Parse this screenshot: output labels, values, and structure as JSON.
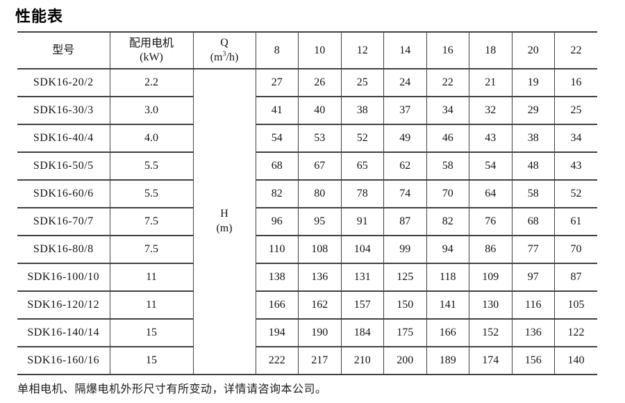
{
  "title": "性能表",
  "table": {
    "headers": {
      "model": "型号",
      "motor_line1": "配用电机",
      "motor_line2": "(kW)",
      "q_label": "Q",
      "q_unit_prefix": "(m",
      "q_unit_sup": "3",
      "q_unit_suffix": "/h)",
      "q_values": [
        "8",
        "10",
        "12",
        "14",
        "16",
        "18",
        "20",
        "22"
      ]
    },
    "h_label": {
      "line1": "H",
      "line2": "(m)"
    },
    "rows": [
      {
        "model": "SDK16-20/2",
        "kw": "2.2",
        "values": [
          "27",
          "26",
          "25",
          "24",
          "22",
          "21",
          "19",
          "16"
        ]
      },
      {
        "model": "SDK16-30/3",
        "kw": "3.0",
        "values": [
          "41",
          "40",
          "38",
          "37",
          "34",
          "32",
          "29",
          "25"
        ]
      },
      {
        "model": "SDK16-40/4",
        "kw": "4.0",
        "values": [
          "54",
          "53",
          "52",
          "49",
          "46",
          "43",
          "38",
          "34"
        ]
      },
      {
        "model": "SDK16-50/5",
        "kw": "5.5",
        "values": [
          "68",
          "67",
          "65",
          "62",
          "58",
          "54",
          "48",
          "43"
        ]
      },
      {
        "model": "SDK16-60/6",
        "kw": "5.5",
        "values": [
          "82",
          "80",
          "78",
          "74",
          "70",
          "64",
          "58",
          "52"
        ]
      },
      {
        "model": "SDK16-70/7",
        "kw": "7.5",
        "values": [
          "96",
          "95",
          "91",
          "87",
          "82",
          "76",
          "68",
          "61"
        ]
      },
      {
        "model": "SDK16-80/8",
        "kw": "7.5",
        "values": [
          "110",
          "108",
          "104",
          "99",
          "94",
          "86",
          "77",
          "70"
        ]
      },
      {
        "model": "SDK16-100/10",
        "kw": "11",
        "values": [
          "138",
          "136",
          "131",
          "125",
          "118",
          "109",
          "97",
          "87"
        ]
      },
      {
        "model": "SDK16-120/12",
        "kw": "11",
        "values": [
          "166",
          "162",
          "157",
          "150",
          "141",
          "130",
          "116",
          "105"
        ]
      },
      {
        "model": "SDK16-140/14",
        "kw": "15",
        "values": [
          "194",
          "190",
          "184",
          "175",
          "166",
          "152",
          "136",
          "122"
        ]
      },
      {
        "model": "SDK16-160/16",
        "kw": "15",
        "values": [
          "222",
          "217",
          "210",
          "200",
          "189",
          "174",
          "156",
          "140"
        ]
      }
    ]
  },
  "footer": {
    "note": "单相电机、隔爆电机外形尺寸有所变动，详情请咨询本公司。"
  }
}
